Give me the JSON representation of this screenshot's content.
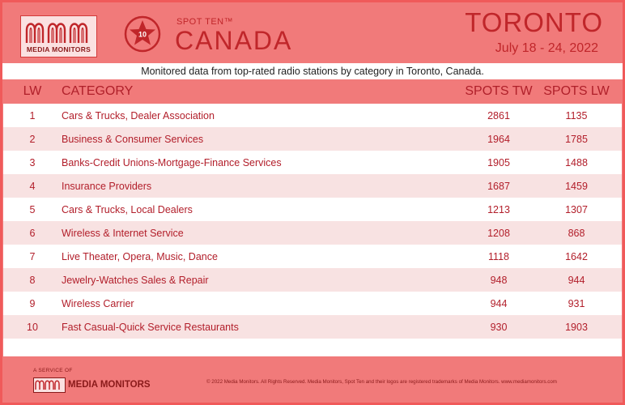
{
  "brand": {
    "logo_text": "MEDIA MONITORS"
  },
  "badge": {
    "number": "10"
  },
  "header": {
    "spot_ten": "SPOT TEN™",
    "country": "CANADA",
    "city": "TORONTO",
    "dates": "July 18 - 24, 2022",
    "subtitle": "Monitored data from top-rated radio stations by category in Toronto, Canada."
  },
  "table": {
    "columns": {
      "lw": "LW",
      "category": "CATEGORY",
      "spots_tw": "SPOTS TW",
      "spots_lw": "SPOTS LW"
    },
    "rows": [
      {
        "lw": "1",
        "category": "Cars & Trucks, Dealer Association",
        "spots_tw": "2861",
        "spots_lw": "1135"
      },
      {
        "lw": "2",
        "category": "Business & Consumer Services",
        "spots_tw": "1964",
        "spots_lw": "1785"
      },
      {
        "lw": "3",
        "category": "Banks-Credit Unions-Mortgage-Finance Services",
        "spots_tw": "1905",
        "spots_lw": "1488"
      },
      {
        "lw": "4",
        "category": "Insurance Providers",
        "spots_tw": "1687",
        "spots_lw": "1459"
      },
      {
        "lw": "5",
        "category": "Cars & Trucks, Local Dealers",
        "spots_tw": "1213",
        "spots_lw": "1307"
      },
      {
        "lw": "6",
        "category": "Wireless & Internet Service",
        "spots_tw": "1208",
        "spots_lw": "868"
      },
      {
        "lw": "7",
        "category": "Live Theater, Opera, Music, Dance",
        "spots_tw": "1118",
        "spots_lw": "1642"
      },
      {
        "lw": "8",
        "category": "Jewelry-Watches Sales & Repair",
        "spots_tw": "948",
        "spots_lw": "944"
      },
      {
        "lw": "9",
        "category": "Wireless Carrier",
        "spots_tw": "944",
        "spots_lw": "931"
      },
      {
        "lw": "10",
        "category": "Fast Casual-Quick Service Restaurants",
        "spots_tw": "930",
        "spots_lw": "1903"
      }
    ]
  },
  "footer": {
    "service_of": "A SERVICE OF",
    "brand": "MEDIA MONITORS",
    "copyright": "© 2022 Media Monitors. All Rights Reserved. Media Monitors, Spot Ten and their logos are registered trademarks of Media Monitors. www.mediamonitors.com"
  },
  "colors": {
    "background": "#f17a7a",
    "accent": "#c0262a",
    "row_alt": "#f8e2e2"
  }
}
